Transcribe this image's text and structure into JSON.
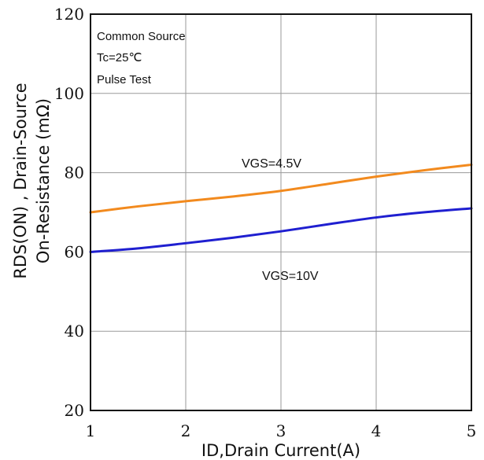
{
  "chart_data": {
    "type": "line",
    "title": "",
    "xlabel": "ID,Drain Current(A)",
    "ylabel_lines": [
      "RDS(ON) , Drain-Source",
      "On-Resistance (mΩ)"
    ],
    "xlim": [
      1,
      5
    ],
    "ylim": [
      20,
      120
    ],
    "xticks": [
      1,
      2,
      3,
      4,
      5
    ],
    "yticks": [
      20,
      40,
      60,
      80,
      100,
      120
    ],
    "xtick_labels": [
      "1",
      "2",
      "3",
      "4",
      "5"
    ],
    "ytick_labels": [
      "20",
      "40",
      "60",
      "80",
      "100",
      "120"
    ],
    "grid": true,
    "annotations": [
      "Common Source",
      "Tc=25℃",
      "Pulse Test"
    ],
    "series": [
      {
        "name": "VGS=4.5V",
        "color": "#F28A1E",
        "x": [
          1,
          1.5,
          2,
          2.5,
          3,
          3.5,
          4,
          4.5,
          5
        ],
        "y": [
          70,
          71.5,
          72.8,
          74,
          75.4,
          77.2,
          79,
          80.6,
          82
        ]
      },
      {
        "name": "VGS=10V",
        "color": "#1F1FD0",
        "x": [
          1,
          1.5,
          2,
          2.5,
          3,
          3.5,
          4,
          4.5,
          5
        ],
        "y": [
          60,
          60.9,
          62.2,
          63.6,
          65.2,
          67,
          68.7,
          70,
          71
        ]
      }
    ]
  }
}
